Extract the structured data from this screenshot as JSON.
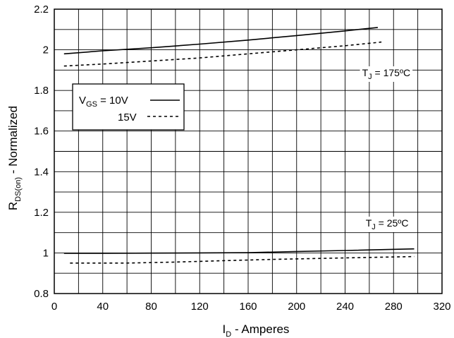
{
  "chart_data": {
    "type": "line",
    "xlabel": {
      "main": "I",
      "sub": "D",
      "rest": " - Amperes"
    },
    "ylabel": {
      "main": "R",
      "sub": "DS(on)",
      "rest": " - Normalized"
    },
    "xlim": [
      0,
      320
    ],
    "ylim": [
      0.8,
      2.2
    ],
    "x_ticks": [
      0,
      40,
      80,
      120,
      160,
      200,
      240,
      280,
      320
    ],
    "y_ticks": [
      "0.8",
      "1",
      "1.2",
      "1.4",
      "1.6",
      "1.8",
      "2",
      "2.2"
    ],
    "x_minor_step": 20,
    "y_minor_step": 0.1,
    "grid": true,
    "legend": {
      "placement": "upper-left",
      "row1": {
        "main": "V",
        "sub": "GS",
        "rest": " = 10V"
      },
      "row2": {
        "main": "15V"
      }
    },
    "annotations": [
      {
        "id": "tj175",
        "main": "T",
        "sub": "J",
        "rest": " = 175ºC",
        "at": [
          254,
          1.87
        ]
      },
      {
        "id": "tj25",
        "main": "T",
        "sub": "J",
        "rest": " = 25ºC",
        "at": [
          257,
          1.13
        ]
      }
    ],
    "series": [
      {
        "name": "VGS = 10V, TJ = 175ºC",
        "style": "solid",
        "x": [
          8,
          40,
          80,
          120,
          160,
          200,
          240,
          267
        ],
        "y": [
          1.98,
          1.995,
          2.01,
          2.028,
          2.048,
          2.07,
          2.093,
          2.11
        ]
      },
      {
        "name": "VGS = 15V, TJ = 175ºC",
        "style": "dashed",
        "x": [
          8,
          40,
          80,
          120,
          160,
          200,
          240,
          270
        ],
        "y": [
          1.92,
          1.93,
          1.945,
          1.96,
          1.98,
          2.0,
          2.02,
          2.038
        ]
      },
      {
        "name": "VGS = 10V, TJ = 25ºC",
        "style": "solid",
        "x": [
          8,
          40,
          80,
          120,
          160,
          200,
          240,
          297
        ],
        "y": [
          0.998,
          0.998,
          0.999,
          1.0,
          1.001,
          1.007,
          1.012,
          1.02
        ]
      },
      {
        "name": "VGS = 15V, TJ = 25ºC",
        "style": "dashed",
        "x": [
          13,
          60,
          100,
          140,
          180,
          220,
          260,
          297
        ],
        "y": [
          0.95,
          0.95,
          0.955,
          0.962,
          0.968,
          0.973,
          0.978,
          0.982
        ]
      }
    ],
    "colors": {
      "line": "#000000",
      "grid": "#000000",
      "background": "#ffffff"
    }
  }
}
